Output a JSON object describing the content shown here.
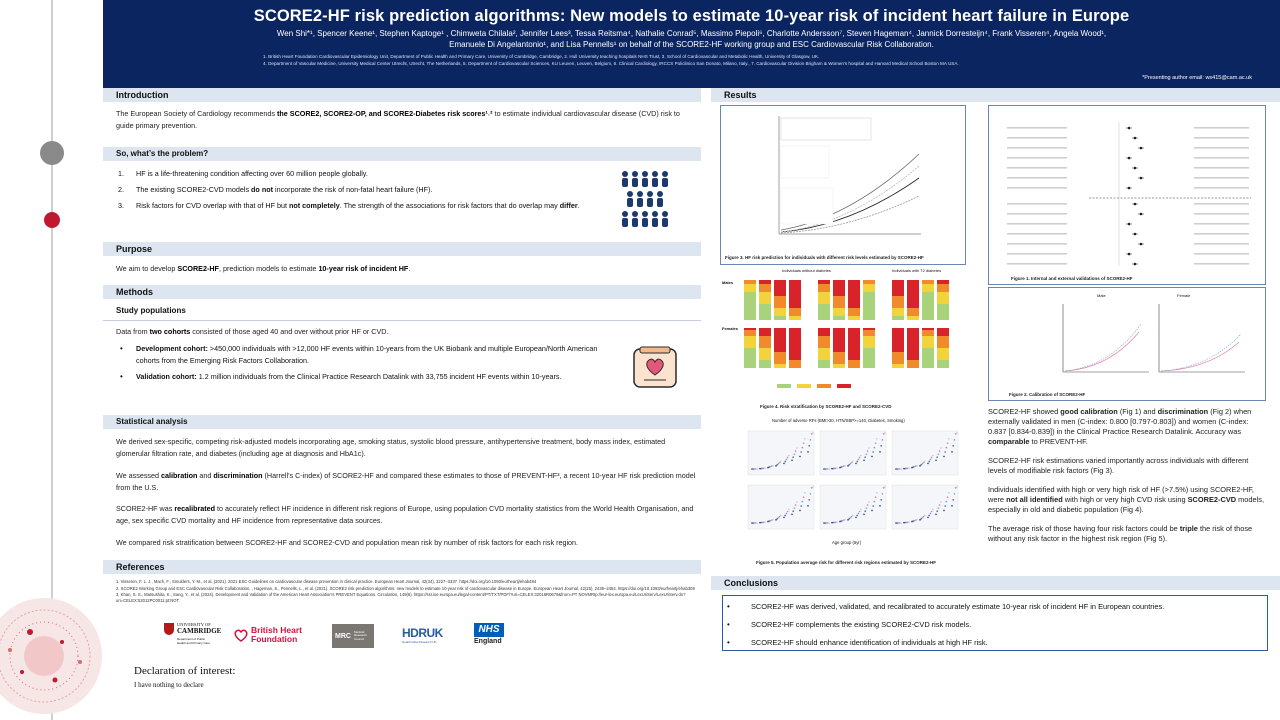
{
  "header": {
    "title": "SCORE2-HF risk prediction algorithms: New models to estimate 10-year risk of incident heart failure in Europe",
    "authors_line1": "Wen Shi*¹, Spencer Keene¹, Stephen Kaptoge¹ , Chimweta Chilala², Jennifer Lees³, Tessa Reitsma⁴, Nathalie Conrad⁵, Massimo Piepoli⁶, Charlotte Andersson⁷, Steven Hageman⁴, Jannick Dorresteijn⁴, Frank Visseren⁴, Angela Wood¹,",
    "authors_line2": "Emanuele Di Angelantonio¹, and Lisa Pennells¹ on behalf of the SCORE2-HF working group and ESC Cardiovascular Risk Collaboration.",
    "affil1": "1. British Heart Foundation Cardiovascular Epidemiology Unit, Department of Public Health and Primary Care, University of Cambridge, Cambridge, 2. Hull University teaching hospitals NHS Trust, 3. School of Cardiovascular and Metabolic Health, University of Glasgow, UK.",
    "affil2": "4. Department of Vascular Medicine, University Medical Center Utrecht, Utrecht, The Netherlands, 5. Department of Cardiovascular Sciences, KU Leuven, Leuven, Belgium, 6. Clinical Cardiology, IRCCS Policlinico San Donato, Milano, Italy., 7. Cardiovascular Division Brigham & Women's hospital and Harvard Medical School Boston MA USA.",
    "email": "*Presenting author email: ws415@cam.ac.uk"
  },
  "intro": {
    "heading": "Introduction",
    "p_pre": "The European Society of Cardiology recommends ",
    "p_bold": "the SCORE2, SCORE2-OP, and SCORE2-Diabetes risk scores¹˒²",
    "p_post": " to estimate individual cardiovascular disease (CVD) risk to guide primary prevention.",
    "problem_heading": "So, what’s the problem?",
    "problems": [
      {
        "n": "1.",
        "pre": "HF is a life-threatening condition affecting over 60 million people globally.",
        "b": "",
        "post": "",
        "b2": "",
        "post2": ""
      },
      {
        "n": "2.",
        "pre": "The existing SCORE2-CVD models ",
        "b": "do not",
        "post": " incorporate the risk of non-fatal heart failure (HF).",
        "b2": "",
        "post2": ""
      },
      {
        "n": "3.",
        "pre": "Risk factors for CVD overlap with that of HF but ",
        "b": "not completely",
        "post": ". The strength of the associations for risk factors that do overlap may ",
        "b2": "differ",
        "post2": "."
      }
    ]
  },
  "purpose": {
    "heading": "Purpose",
    "pre": "We aim to develop ",
    "b1": "SCORE2-HF",
    "mid": ", prediction models to estimate ",
    "b2": "10-year risk of incident HF",
    "post": "."
  },
  "methods": {
    "heading": "Methods",
    "study_heading": "Study populations",
    "study_pre": "Data from ",
    "study_b": "two cohorts",
    "study_post": " consisted of those aged 40 and over without prior HF or CVD.",
    "dev_b": "Development cohort:",
    "dev_t": " >450,000 individuals with >12,000 HF events within 10-years from the UK Biobank and multiple European/North American cohorts from the Emerging Risk Factors Collaboration.",
    "val_b": "Validation cohort:",
    "val_t": " 1.2 million individuals from the Clinical Practice Research Datalink with 33,755 incident HF events within 10-years.",
    "stat_heading": "Statistical analysis",
    "stat_p1": "We derived sex-specific, competing risk-adjusted models incorporating age, smoking status, systolic blood pressure, antihypertensive treatment, body mass index, estimated glomerular filtration rate, and diabetes (including age at diagnosis and HbA1c).",
    "stat_p2_pre": "We assessed ",
    "stat_p2_b1": "calibration",
    "stat_p2_mid": " and ",
    "stat_p2_b2": "discrimination",
    "stat_p2_post": " (Harrell’s C-index) of SCORE2-HF and compared these estimates to those of PREVENT-HF³, a recent 10-year HF risk prediction model from the U.S.",
    "stat_p3_pre": "SCORE2-HF was ",
    "stat_p3_b": "recalibrated",
    "stat_p3_post": " to accurately reflect HF incidence in different risk regions of Europe, using population CVD mortality statistics from the World Health Organisation, and age, sex specific CVD mortality and HF incidence from representative data sources.",
    "stat_p4": "We compared risk stratification between SCORE2-HF and  SCORE2-CVD and population mean risk by number of risk factors for each risk region."
  },
  "references": {
    "heading": "References",
    "items": [
      "1.     Visseren, F. L. J., Mach, F., Smulders, Y. M., et al. (2021). 2021 ESC Guidelines on cardiovascular disease prevention in clinical practice. European Heart Journal, 42(34), 3227–3337. https://doi.org/10.1093/eurheartj/ehab484",
      "2.     SCORE2 Working Group and ESC Cardiovascular Risk Collaboration, , Hageman, S., Pennells, L., et al. (2021). SCORE2 risk prediction algorithms: new models to estimate 10-year risk of cardiovascular disease in Europe. European Heart Journal, 42(25), 2439–2454. https://doi.org/10.1093/eurheartj/ehab309",
      "3.     Khan, S. S., Matsushita, K., Sang, Y., et al. (2024). Development and Validation of the American Heart Association's PREVENT Equations. Circulation, 149(6). https://ssr.ioe.europa.eu/legal-content/PT/TXT/PDF/?uri=CELEX:32016R0679&from=PT NOVMRtp://eur-lex.europa.eu/LexUriServ/LexUriServ.do?uri=CELEX:52012PC0011:pt:NOT."
    ]
  },
  "logos": {
    "cambridge_1": "UNIVERSITY OF",
    "cambridge_2": "CAMBRIDGE",
    "cambridge_3": "Department of Public",
    "cambridge_4": "Health and Primary Care",
    "bhf_1": "British Heart",
    "bhf_2": "Foundation",
    "mrc": "MRC",
    "mrc_2": "Medical",
    "mrc_3": "Research",
    "mrc_4": "Council",
    "hdruk": "HDRUK",
    "hdruk_sub": "Health Data Research UK",
    "nhs": "NHS",
    "nhs_sub": "England"
  },
  "declaration": {
    "heading": "Declaration of interest:",
    "text": "I have nothing to declare"
  },
  "results": {
    "heading": "Results",
    "p1_pre": "SCORE2-HF showed ",
    "p1_b1": "good calibration",
    "p1_mid": " (Fig 1) and ",
    "p1_b2": "discrimination",
    "p1_post": " (Fig 2) when externally validated in men (C-index: 0.800 [0.797-0.803]) and women (C-index: 0.837 [0.834-0.839]) in the Clinical Practice Research Datalink. Accuracy was ",
    "p1_b3": "comparable",
    "p1_post2": " to PREVENT-HF.",
    "p2": "SCORE2-HF risk estimations varied importantly across individuals with different levels of modifiable risk factors (Fig 3).",
    "p3_pre": "Individuals identified with high or very high risk of HF (>7.5%) using SCORE2-HF, were ",
    "p3_b1": "not all identified",
    "p3_mid": " with high or very high CVD risk using ",
    "p3_b2": "SCORE2-CVD",
    "p3_post": " models, especially in old and diabetic population (Fig 4).",
    "p4_pre": "The average risk of those having four risk factors could be ",
    "p4_b": "triple",
    "p4_post": " the risk of those without any risk factor in the highest risk region (Fig 5).",
    "fig3_caption": "Figure 3. HF risk prediction for individuals with different risk levels estimated by SCORE2-HF",
    "fig4_caption": "Figure 4. Risk stratification by SCORE2-HF and SCORE2-CVD",
    "fig5_caption": "Figure 5. Population average risk for different risk regions estimated by SCORE2-HF",
    "fig1_caption": "Figure 1. Internal and external validations of SCORE2-HF",
    "fig2_caption": "Figure 2. Calibration of SCORE2-HF",
    "fig4_head_left": "Individuals without diabetes",
    "fig4_head_right": "Individuals with T2 diabetes",
    "fig4_row1": "Males",
    "fig4_row2": "Females",
    "fig5_title": "Number of adverse RFs (BMI>30, HTN/SBP>=140, Diabetes, Smoking)",
    "fig5_xlabel": "Age group (5yr)",
    "fig2_male": "Male",
    "fig2_female": "Female"
  },
  "conclusions": {
    "heading": "Conclusions",
    "items": [
      "SCORE2-HF was derived, validated, and recalibrated to accurately estimate 10-year risk of incident HF in European countries.",
      "SCORE2-HF complements the existing SCORE2-CVD risk models.",
      "SCORE2-HF should enhance identification of individuals at high HF risk."
    ]
  },
  "colors": {
    "header_bg": "#0b2560",
    "section_bar": "#dde5f0",
    "timeline_dot_grey": "#8a8a8a",
    "timeline_dot_red": "#c0182c",
    "icon_navy": "#1d3a6e",
    "green": "#a9d37a",
    "yellow": "#f3d33b",
    "orange": "#f08a2a",
    "red": "#d8232a"
  }
}
